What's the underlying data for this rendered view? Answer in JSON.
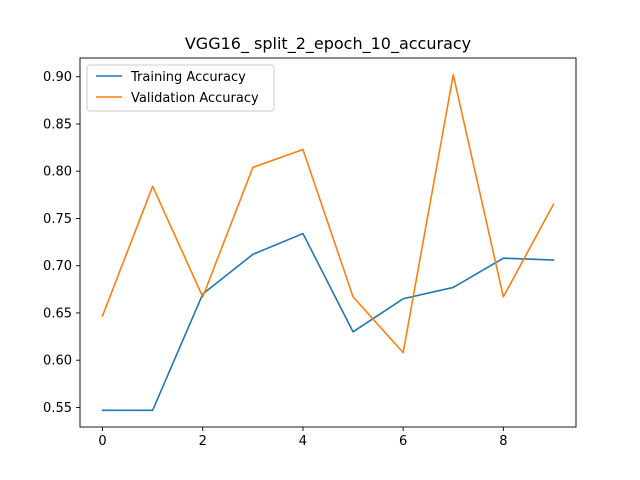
{
  "chart_data": {
    "type": "line",
    "title": "VGG16_ split_2_epoch_10_accuracy",
    "xlabel": "",
    "ylabel": "",
    "x": [
      0,
      1,
      2,
      3,
      4,
      5,
      6,
      7,
      8,
      9
    ],
    "series": [
      {
        "name": "Training Accuracy",
        "color": "#1f77b4",
        "values": [
          0.547,
          0.547,
          0.67,
          0.712,
          0.734,
          0.63,
          0.665,
          0.677,
          0.708,
          0.706
        ]
      },
      {
        "name": "Validation Accuracy",
        "color": "#ff7f0e",
        "values": [
          0.647,
          0.784,
          0.667,
          0.804,
          0.823,
          0.667,
          0.608,
          0.902,
          0.667,
          0.765
        ]
      }
    ],
    "xlim": [
      -0.45,
      9.45
    ],
    "ylim": [
      0.5293,
      0.9198
    ],
    "xticks": [
      0,
      2,
      4,
      6,
      8
    ],
    "yticks": [
      0.55,
      0.6,
      0.65,
      0.7,
      0.75,
      0.8,
      0.85,
      0.9
    ],
    "xtick_labels": [
      "0",
      "2",
      "4",
      "6",
      "8"
    ],
    "ytick_labels": [
      "0.55",
      "0.60",
      "0.65",
      "0.70",
      "0.75",
      "0.80",
      "0.85",
      "0.90"
    ],
    "grid": false,
    "legend_placement": "top-left"
  }
}
